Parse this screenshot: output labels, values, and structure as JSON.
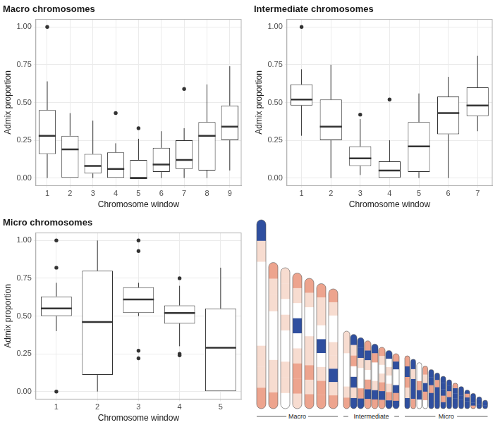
{
  "chart_data": [
    {
      "type": "box",
      "title": "Macro chromosomes",
      "x_label": "Chromosome window",
      "y_label": "Admix proportion",
      "categories": [
        "1",
        "2",
        "3",
        "4",
        "5",
        "6",
        "7",
        "8",
        "9"
      ],
      "whisker_low": [
        0,
        0,
        0,
        0,
        0,
        0,
        0,
        0,
        0.05
      ],
      "q1": [
        0.16,
        0,
        0.03,
        0,
        0,
        0.04,
        0.06,
        0.05,
        0.25
      ],
      "median": [
        0.28,
        0.19,
        0.08,
        0.06,
        0,
        0.09,
        0.12,
        0.28,
        0.34
      ],
      "q3": [
        0.45,
        0.28,
        0.16,
        0.17,
        0.12,
        0.2,
        0.25,
        0.37,
        0.48
      ],
      "whisker_high": [
        0.64,
        0.43,
        0.38,
        0.23,
        0.26,
        0.31,
        0.33,
        0.62,
        0.74
      ],
      "outliers": [
        [
          1.0
        ],
        [],
        [],
        [
          0.43
        ],
        [
          0.33
        ],
        [],
        [
          0.59
        ],
        [],
        []
      ],
      "color": "#333333",
      "grid": true,
      "ylim": [
        -0.05,
        1.05
      ],
      "yticks": [
        {
          "value": 0,
          "label": "0.00"
        },
        {
          "value": 0.25,
          "label": "0.25"
        },
        {
          "value": 0.5,
          "label": "0.50"
        },
        {
          "value": 0.75,
          "label": "0.75"
        },
        {
          "value": 1,
          "label": "1.00"
        }
      ]
    },
    {
      "type": "box",
      "title": "Intermediate chromosomes",
      "x_label": "Chromosome window",
      "y_label": "Admix proportion",
      "categories": [
        "1",
        "2",
        "3",
        "4",
        "5",
        "6",
        "7"
      ],
      "whisker_low": [
        0.28,
        0,
        0.02,
        0,
        0,
        0,
        0.31
      ],
      "q1": [
        0.48,
        0.25,
        0.08,
        0,
        0.04,
        0.29,
        0.41
      ],
      "median": [
        0.52,
        0.34,
        0.13,
        0.05,
        0.21,
        0.43,
        0.48
      ],
      "q3": [
        0.62,
        0.52,
        0.21,
        0.11,
        0.37,
        0.54,
        0.6
      ],
      "whisker_high": [
        0.72,
        0.75,
        0.39,
        0.25,
        0.56,
        0.67,
        0.81
      ],
      "outliers": [
        [
          1.0
        ],
        [],
        [
          0.42
        ],
        [
          0.52
        ],
        [],
        [],
        []
      ],
      "color": "#333333",
      "grid": true,
      "ylim": [
        -0.05,
        1.05
      ],
      "yticks": [
        {
          "value": 0,
          "label": "0.00"
        },
        {
          "value": 0.25,
          "label": "0.25"
        },
        {
          "value": 0.5,
          "label": "0.50"
        },
        {
          "value": 0.75,
          "label": "0.75"
        },
        {
          "value": 1,
          "label": "1.00"
        }
      ]
    },
    {
      "type": "box",
      "title": "Micro chromosomes",
      "x_label": "Chromosome window",
      "y_label": "Admix proportion",
      "categories": [
        "1",
        "2",
        "3",
        "4",
        "5"
      ],
      "whisker_low": [
        0.4,
        0,
        0.5,
        0.3,
        0
      ],
      "q1": [
        0.5,
        0.11,
        0.52,
        0.45,
        0
      ],
      "median": [
        0.55,
        0.46,
        0.61,
        0.52,
        0.29
      ],
      "q3": [
        0.63,
        0.8,
        0.69,
        0.57,
        0.55
      ],
      "whisker_high": [
        0.72,
        1.0,
        0.72,
        0.7,
        0.82
      ],
      "outliers": [
        [
          1.0,
          0.82,
          0.0
        ],
        [],
        [
          1.0,
          0.93,
          0.27,
          0.22
        ],
        [
          0.75,
          0.25,
          0.24
        ],
        []
      ],
      "color": "#333333",
      "grid": true,
      "ylim": [
        -0.05,
        1.05
      ],
      "yticks": [
        {
          "value": 0,
          "label": "0.00"
        },
        {
          "value": 0.25,
          "label": "0.25"
        },
        {
          "value": 0.5,
          "label": "0.50"
        },
        {
          "value": 0.75,
          "label": "0.75"
        },
        {
          "value": 1,
          "label": "1.00"
        }
      ]
    }
  ],
  "ideogram": {
    "groups": [
      {
        "label": "Macro",
        "chromosomes": [
          [
            "#2f4f9f",
            "#f7dcd0",
            "#ffffff",
            "#ffffff",
            "#ffffff",
            "#ffffff",
            "#f7dcd0",
            "#f7dcd0",
            "#eda48e"
          ],
          [
            "#eda48e",
            "#f7dcd0",
            "#f7dcd0",
            "#ffffff",
            "#ffffff",
            "#ffffff",
            "#f7dcd0",
            "#f7dcd0",
            "#eda48e"
          ],
          [
            "#f7dcd0",
            "#f7dcd0",
            "#ffffff",
            "#f7dcd0",
            "#ffffff",
            "#ffffff",
            "#f7dcd0",
            "#f7dcd0",
            "#ffffff"
          ],
          [
            "#eda48e",
            "#f7dcd0",
            "#ffffff",
            "#2f4f9f",
            "#ffffff",
            "#f7dcd0",
            "#eda48e",
            "#eda48e",
            "#f7dcd0"
          ],
          [
            "#eda48e",
            "#f7dcd0",
            "#ffffff",
            "#ffffff",
            "#f7dcd0",
            "#f7dcd0",
            "#eda48e",
            "#f7dcd0",
            "#eda48e"
          ],
          [
            "#eda48e",
            "#f7dcd0",
            "#f7dcd0",
            "#ffffff",
            "#2f4f9f",
            "#ffffff",
            "#f7dcd0",
            "#eda48e",
            "#eda48e"
          ],
          [
            "#eda48e",
            "#f7dcd0",
            "#ffffff",
            "#ffffff",
            "#f7dcd0",
            "#f7dcd0",
            "#2f4f9f",
            "#f7dcd0",
            "#eda48e"
          ]
        ]
      },
      {
        "label": "Intermediate",
        "chromosomes": [
          [
            "#f7dcd0",
            "#f7dcd0",
            "#ffffff",
            "#ffffff",
            "#ffffff",
            "#f7dcd0",
            "#eda48e"
          ],
          [
            "#2f4f9f",
            "#f7dcd0",
            "#eda48e",
            "#ffffff",
            "#2f4f9f",
            "#f7dcd0",
            "#2f4f9f"
          ],
          [
            "#2f4f9f",
            "#2f4f9f",
            "#f7dcd0",
            "#ffffff",
            "#ffffff",
            "#eda48e",
            "#2f4f9f"
          ],
          [
            "#eda48e",
            "#2f4f9f",
            "#f7dcd0",
            "#ffffff",
            "#eda48e",
            "#2f4f9f",
            "#eda48e"
          ],
          [
            "#2f4f9f",
            "#eda48e",
            "#ffffff",
            "#ffffff",
            "#f7dcd0",
            "#2f4f9f",
            "#eda48e"
          ],
          [
            "#eda48e",
            "#f7dcd0",
            "#ffffff",
            "#f7dcd0",
            "#eda48e",
            "#2f4f9f",
            "#eda48e"
          ],
          [
            "#2f4f9f",
            "#ffffff",
            "#f7dcd0",
            "#ffffff",
            "#f7dcd0",
            "#eda48e",
            "#2f4f9f"
          ],
          [
            "#eda48e",
            "#2f4f9f",
            "#ffffff",
            "#ffffff",
            "#2f4f9f",
            "#eda48e",
            "#2f4f9f"
          ]
        ]
      },
      {
        "label": "Micro",
        "chromosomes": [
          [
            "#eda48e",
            "#2f4f9f",
            "#eda48e",
            "#f7dcd0",
            "#2f4f9f"
          ],
          [
            "#2f4f9f",
            "#f7dcd0",
            "#2f4f9f",
            "#2f4f9f",
            "#eda48e"
          ],
          [
            "#ffffff",
            "#ffffff",
            "#eda48e",
            "#2f4f9f",
            "#ffffff"
          ],
          [
            "#eda48e",
            "#f7dcd0",
            "#2f4f9f",
            "#eda48e",
            "#ffffff"
          ],
          [
            "#2f4f9f",
            "#2f4f9f",
            "#eda48e",
            "#2f4f9f",
            "#2f4f9f"
          ],
          [
            "#2f4f9f",
            "#eda48e",
            "#2f4f9f",
            "#2f4f9f",
            "#2f4f9f"
          ],
          [
            "#2f4f9f",
            "#2f4f9f",
            "#2f4f9f",
            "#eda48e",
            "#2f4f9f"
          ],
          [
            "#2f4f9f",
            "#2f4f9f",
            "#eda48e",
            "#2f4f9f",
            "#2f4f9f"
          ],
          [
            "#eda48e",
            "#2f4f9f",
            "#2f4f9f",
            "#2f4f9f",
            "#2f4f9f"
          ],
          [
            "#2f4f9f",
            "#2f4f9f",
            "#2f4f9f",
            "#2f4f9f",
            "#2f4f9f"
          ],
          [
            "#2f4f9f",
            "#eda48e",
            "#2f4f9f",
            "#2f4f9f",
            "#2f4f9f"
          ],
          [
            "#2f4f9f",
            "#2f4f9f",
            "#2f4f9f",
            "#2f4f9f",
            "#eda48e"
          ],
          [
            "#2f4f9f",
            "#2f4f9f",
            "#2f4f9f",
            "#2f4f9f",
            "#2f4f9f"
          ],
          [
            "#2f4f9f",
            "#2f4f9f",
            "#2f4f9f",
            "#2f4f9f",
            "#2f4f9f"
          ]
        ]
      }
    ]
  }
}
